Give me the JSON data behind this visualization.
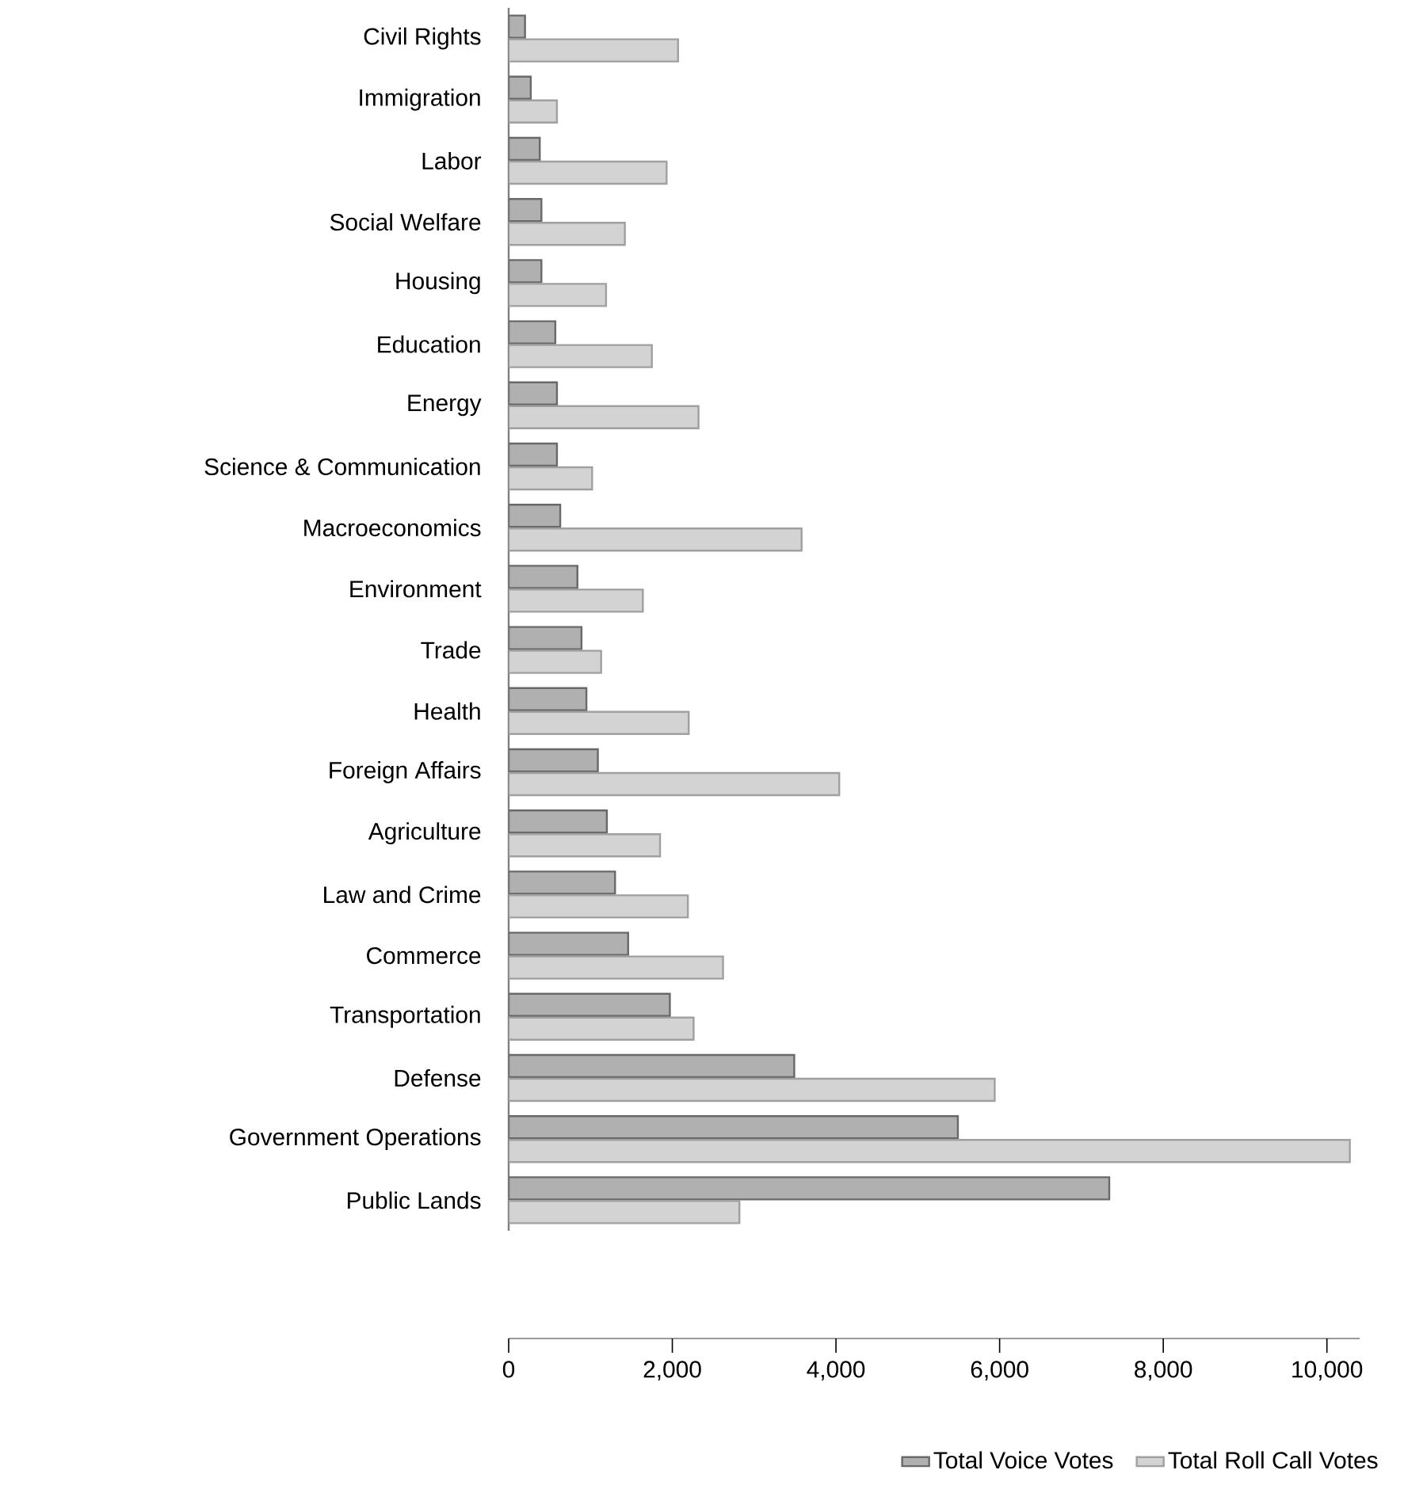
{
  "chart_data": {
    "type": "bar",
    "orientation": "horizontal",
    "categories": [
      "Civil Rights",
      "Immigration",
      "Labor",
      "Social Welfare",
      "Housing",
      "Education",
      "Energy",
      "Science & Communication",
      "Macroeconomics",
      "Environment",
      "Trade",
      "Health",
      "Foreign Affairs",
      "Agriculture",
      "Law and Crime",
      "Commerce",
      "Transportation",
      "Defense",
      "Government Operations",
      "Public Lands"
    ],
    "series": [
      {
        "name": "Total Voice Votes",
        "color": "#b0b0b0",
        "values": [
          200,
          270,
          380,
          400,
          400,
          570,
          590,
          590,
          630,
          840,
          890,
          950,
          1090,
          1200,
          1300,
          1460,
          1970,
          3490,
          5490,
          7340
        ]
      },
      {
        "name": "Total Roll Call Votes",
        "color": "#d3d3d3",
        "values": [
          2070,
          590,
          1930,
          1420,
          1190,
          1750,
          2320,
          1020,
          3580,
          1640,
          1130,
          2200,
          4040,
          1850,
          2190,
          2620,
          2260,
          5940,
          10280,
          2820
        ]
      }
    ],
    "xlim": [
      0,
      10400
    ],
    "xticks": [
      0,
      {
        "value": 2000,
        "label": "2,000"
      },
      {
        "value": 4000,
        "label": "4,000"
      },
      {
        "value": 6000,
        "label": "6,000"
      },
      {
        "value": 8000,
        "label": "8,000"
      },
      {
        "value": 10000,
        "label": "10,000"
      }
    ],
    "legend": "bottom right",
    "grid": false
  }
}
